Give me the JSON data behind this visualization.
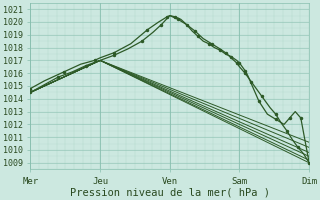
{
  "background_color": "#cce8e0",
  "grid_color_minor": "#b0d8cc",
  "grid_color_major": "#88bfaf",
  "line_color": "#2d5a27",
  "ylim": [
    1008.5,
    1021.5
  ],
  "yticks": [
    1009,
    1010,
    1011,
    1012,
    1013,
    1014,
    1015,
    1016,
    1017,
    1018,
    1019,
    1020,
    1021
  ],
  "xlabel": "Pression niveau de la mer( hPa )",
  "day_labels": [
    "Mer",
    "Jeu",
    "Ven",
    "Sam",
    "Dim"
  ],
  "day_positions": [
    0,
    0.25,
    0.5,
    0.75,
    1.0
  ],
  "xlim": [
    0,
    1.0
  ],
  "axis_fontsize": 7,
  "tick_fontsize": 6,
  "series_with_dots": [
    {
      "points": [
        [
          0.0,
          1014.5
        ],
        [
          0.04,
          1015.2
        ],
        [
          0.08,
          1015.8
        ],
        [
          0.12,
          1016.3
        ],
        [
          0.16,
          1016.6
        ],
        [
          0.2,
          1016.9
        ],
        [
          0.24,
          1017.1
        ],
        [
          0.25,
          1017.2
        ],
        [
          0.28,
          1017.4
        ],
        [
          0.3,
          1017.6
        ],
        [
          0.33,
          1018.0
        ],
        [
          0.36,
          1018.5
        ],
        [
          0.39,
          1019.0
        ],
        [
          0.42,
          1019.5
        ],
        [
          0.45,
          1020.0
        ],
        [
          0.47,
          1020.4
        ],
        [
          0.49,
          1020.5
        ],
        [
          0.5,
          1020.5
        ],
        [
          0.52,
          1020.3
        ],
        [
          0.54,
          1019.8
        ],
        [
          0.56,
          1019.4
        ],
        [
          0.58,
          1019.0
        ],
        [
          0.6,
          1018.7
        ],
        [
          0.62,
          1018.5
        ],
        [
          0.65,
          1018.3
        ],
        [
          0.68,
          1018.2
        ],
        [
          0.7,
          1018.1
        ],
        [
          0.72,
          1018.0
        ],
        [
          0.74,
          1017.8
        ],
        [
          0.75,
          1017.5
        ],
        [
          0.76,
          1017.2
        ],
        [
          0.78,
          1016.8
        ],
        [
          0.8,
          1016.3
        ],
        [
          0.83,
          1015.5
        ],
        [
          0.86,
          1014.5
        ],
        [
          0.88,
          1013.8
        ],
        [
          0.9,
          1013.0
        ],
        [
          0.92,
          1012.3
        ],
        [
          0.93,
          1012.0
        ],
        [
          0.94,
          1012.3
        ],
        [
          0.95,
          1013.0
        ],
        [
          0.96,
          1013.4
        ],
        [
          0.97,
          1013.2
        ],
        [
          0.98,
          1012.8
        ],
        [
          0.99,
          1012.3
        ],
        [
          1.0,
          1009.0
        ]
      ],
      "has_dots": true
    },
    {
      "points": [
        [
          0.0,
          1014.3
        ],
        [
          0.05,
          1015.0
        ],
        [
          0.1,
          1015.7
        ],
        [
          0.15,
          1016.3
        ],
        [
          0.2,
          1016.8
        ],
        [
          0.25,
          1017.1
        ],
        [
          0.3,
          1017.4
        ],
        [
          0.35,
          1017.8
        ],
        [
          0.4,
          1018.2
        ],
        [
          0.45,
          1019.2
        ],
        [
          0.47,
          1019.8
        ],
        [
          0.49,
          1020.2
        ],
        [
          0.5,
          1020.5
        ],
        [
          0.51,
          1020.4
        ],
        [
          0.52,
          1020.1
        ],
        [
          0.54,
          1019.5
        ],
        [
          0.56,
          1018.9
        ],
        [
          0.58,
          1018.3
        ],
        [
          0.6,
          1017.7
        ],
        [
          0.63,
          1016.9
        ],
        [
          0.66,
          1016.2
        ],
        [
          0.69,
          1015.6
        ],
        [
          0.72,
          1015.2
        ],
        [
          0.74,
          1014.9
        ],
        [
          0.75,
          1014.8
        ],
        [
          0.76,
          1014.7
        ],
        [
          0.78,
          1014.4
        ],
        [
          0.8,
          1013.8
        ],
        [
          0.83,
          1013.0
        ],
        [
          0.86,
          1012.2
        ],
        [
          0.89,
          1011.5
        ],
        [
          0.92,
          1011.0
        ],
        [
          0.95,
          1010.5
        ],
        [
          0.98,
          1010.2
        ],
        [
          1.0,
          1009.0
        ]
      ],
      "has_dots": true
    }
  ],
  "series_straight": [
    [
      [
        0.0,
        1014.5
      ],
      [
        0.25,
        1017.2
      ],
      [
        0.5,
        1017.0
      ],
      [
        0.75,
        1014.5
      ],
      [
        1.0,
        1009.0
      ]
    ],
    [
      [
        0.0,
        1014.5
      ],
      [
        0.25,
        1017.2
      ],
      [
        0.5,
        1016.8
      ],
      [
        0.75,
        1013.8
      ],
      [
        1.0,
        1009.0
      ]
    ],
    [
      [
        0.0,
        1014.5
      ],
      [
        0.25,
        1017.2
      ],
      [
        0.5,
        1016.5
      ],
      [
        0.75,
        1013.2
      ],
      [
        1.0,
        1009.0
      ]
    ],
    [
      [
        0.0,
        1014.5
      ],
      [
        0.25,
        1017.2
      ],
      [
        0.5,
        1016.2
      ],
      [
        0.75,
        1012.5
      ],
      [
        1.0,
        1009.0
      ]
    ],
    [
      [
        0.0,
        1014.5
      ],
      [
        0.25,
        1017.2
      ],
      [
        0.5,
        1015.8
      ],
      [
        0.75,
        1011.8
      ],
      [
        1.0,
        1009.0
      ]
    ],
    [
      [
        0.0,
        1014.5
      ],
      [
        0.25,
        1017.2
      ],
      [
        0.5,
        1015.5
      ],
      [
        0.75,
        1011.2
      ],
      [
        1.0,
        1009.0
      ]
    ]
  ]
}
